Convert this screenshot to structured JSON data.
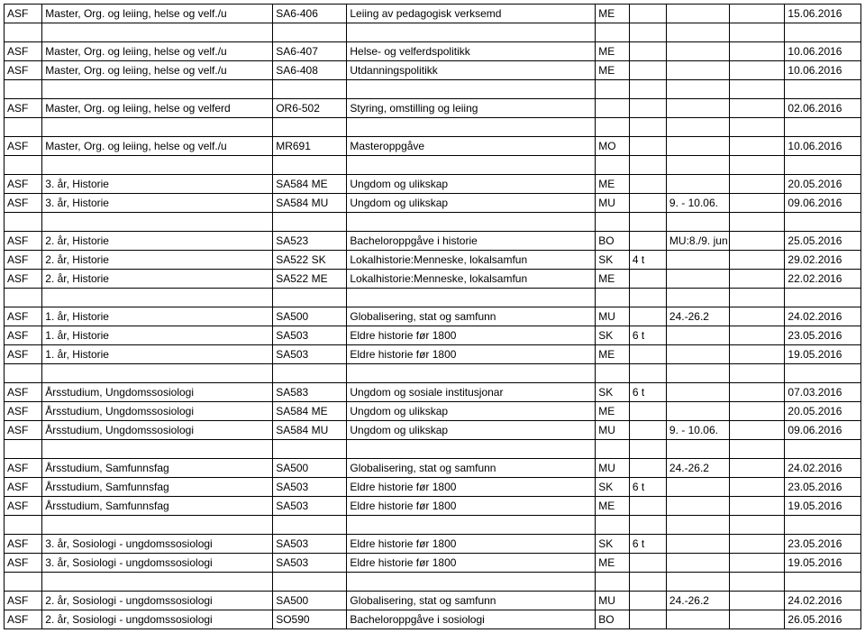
{
  "rows": [
    [
      "ASF",
      "Master, Org. og leiing, helse og velf./u",
      "SA6-406",
      "Leiing av pedagogisk verksemd",
      "ME",
      "",
      "",
      "",
      "15.06.2016"
    ],
    [
      "",
      "",
      "",
      "",
      "",
      "",
      "",
      "",
      ""
    ],
    [
      "ASF",
      "Master, Org. og leiing, helse og velf./u",
      "SA6-407",
      "Helse- og velferdspolitikk",
      "ME",
      "",
      "",
      "",
      "10.06.2016"
    ],
    [
      "ASF",
      "Master, Org. og leiing, helse og velf./u",
      "SA6-408",
      "Utdanningspolitikk",
      "ME",
      "",
      "",
      "",
      "10.06.2016"
    ],
    [
      "",
      "",
      "",
      "",
      "",
      "",
      "",
      "",
      ""
    ],
    [
      "ASF",
      "Master, Org. og leiing, helse og velferd",
      "OR6-502",
      "Styring, omstilling og leiing",
      "",
      "",
      "",
      "",
      "02.06.2016"
    ],
    [
      "",
      "",
      "",
      "",
      "",
      "",
      "",
      "",
      ""
    ],
    [
      "ASF",
      "Master, Org. og leiing, helse og velf./u",
      "MR691",
      "Masteroppgåve",
      "MO",
      "",
      "",
      "",
      "10.06.2016"
    ],
    [
      "",
      "",
      "",
      "",
      "",
      "",
      "",
      "",
      ""
    ],
    [
      "ASF",
      "3. år, Historie",
      "SA584 ME",
      "Ungdom og ulikskap",
      "ME",
      "",
      "",
      "",
      "20.05.2016"
    ],
    [
      "ASF",
      "3. år, Historie",
      "SA584 MU",
      "Ungdom og ulikskap",
      "MU",
      "",
      "9. - 10.06.",
      "",
      "09.06.2016"
    ],
    [
      "",
      "",
      "",
      "",
      "",
      "",
      "",
      "",
      ""
    ],
    [
      "ASF",
      "2. år, Historie",
      "SA523",
      "Bacheloroppgåve i historie",
      "BO",
      "",
      "MU:8./9. jun",
      "",
      "25.05.2016"
    ],
    [
      "ASF",
      "2. år, Historie",
      "SA522 SK",
      "Lokalhistorie:Menneske, lokalsamfun",
      "SK",
      "4 t",
      "",
      "",
      "29.02.2016"
    ],
    [
      "ASF",
      "2. år, Historie",
      "SA522 ME",
      "Lokalhistorie:Menneske, lokalsamfun",
      "ME",
      "",
      "",
      "",
      "22.02.2016"
    ],
    [
      "",
      "",
      "",
      "",
      "",
      "",
      "",
      "",
      ""
    ],
    [
      "ASF",
      "1. år, Historie",
      "SA500",
      "Globalisering, stat og samfunn",
      "MU",
      "",
      "24.-26.2",
      "",
      "24.02.2016"
    ],
    [
      "ASF",
      "1. år, Historie",
      "SA503",
      "Eldre historie før 1800",
      "SK",
      "6 t",
      "",
      "",
      "23.05.2016"
    ],
    [
      "ASF",
      "1. år, Historie",
      "SA503",
      "Eldre historie før 1800",
      "ME",
      "",
      "",
      "",
      "19.05.2016"
    ],
    [
      "",
      "",
      "",
      "",
      "",
      "",
      "",
      "",
      ""
    ],
    [
      "ASF",
      "Årsstudium, Ungdomssosiologi",
      "SA583",
      "Ungdom og sosiale institusjonar",
      "SK",
      "6 t",
      "",
      "",
      "07.03.2016"
    ],
    [
      "ASF",
      "Årsstudium, Ungdomssosiologi",
      "SA584 ME",
      "Ungdom og ulikskap",
      "ME",
      "",
      "",
      "",
      "20.05.2016"
    ],
    [
      "ASF",
      "Årsstudium, Ungdomssosiologi",
      "SA584 MU",
      "Ungdom og ulikskap",
      "MU",
      "",
      "9. - 10.06.",
      "",
      "09.06.2016"
    ],
    [
      "",
      "",
      "",
      "",
      "",
      "",
      "",
      "",
      ""
    ],
    [
      "ASF",
      "Årsstudium, Samfunnsfag",
      "SA500",
      "Globalisering, stat og samfunn",
      "MU",
      "",
      "24.-26.2",
      "",
      "24.02.2016"
    ],
    [
      "ASF",
      "Årsstudium, Samfunnsfag",
      "SA503",
      "Eldre historie før 1800",
      "SK",
      "6 t",
      "",
      "",
      "23.05.2016"
    ],
    [
      "ASF",
      "Årsstudium, Samfunnsfag",
      "SA503",
      "Eldre historie før 1800",
      "ME",
      "",
      "",
      "",
      "19.05.2016"
    ],
    [
      "",
      "",
      "",
      "",
      "",
      "",
      "",
      "",
      ""
    ],
    [
      "ASF",
      "3. år, Sosiologi - ungdomssosiologi",
      "SA503",
      "Eldre historie før 1800",
      "SK",
      "6 t",
      "",
      "",
      "23.05.2016"
    ],
    [
      "ASF",
      "3. år, Sosiologi - ungdomssosiologi",
      "SA503",
      "Eldre historie før 1800",
      "ME",
      "",
      "",
      "",
      "19.05.2016"
    ],
    [
      "",
      "",
      "",
      "",
      "",
      "",
      "",
      "",
      ""
    ],
    [
      "ASF",
      "2. år, Sosiologi - ungdomssosiologi",
      "SA500",
      "Globalisering, stat og samfunn",
      "MU",
      "",
      "24.-26.2",
      "",
      "24.02.2016"
    ],
    [
      "ASF",
      "2. år, Sosiologi - ungdomssosiologi",
      "SO590",
      "Bacheloroppgåve i sosiologi",
      "BO",
      "",
      "",
      "",
      "26.05.2016"
    ]
  ]
}
